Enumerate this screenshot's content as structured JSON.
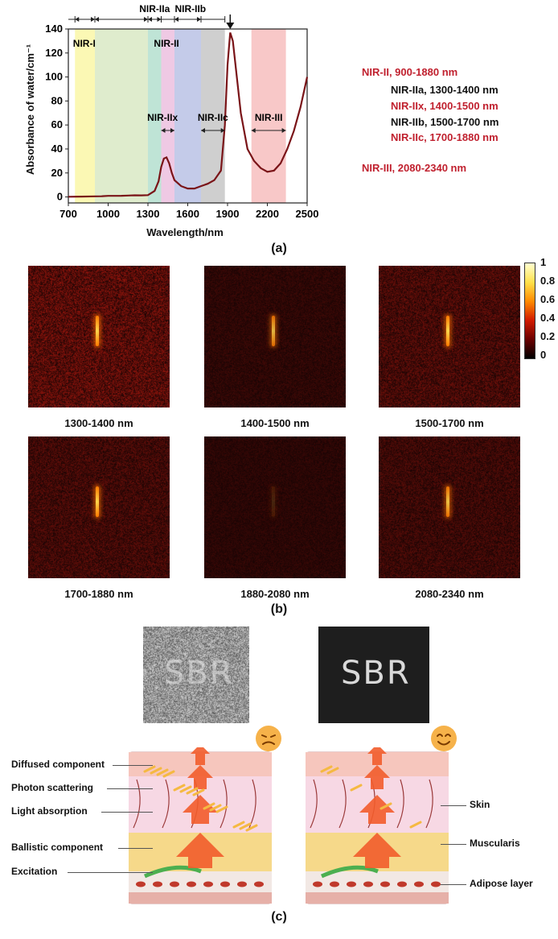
{
  "panel_a": {
    "label": "(a)",
    "chart_data": {
      "type": "line",
      "xlabel": "Wavelength/nm",
      "ylabel": "Absorbance of water/cm⁻¹",
      "xlim": [
        700,
        2500
      ],
      "ylim": [
        -5,
        140
      ],
      "x_ticks": [
        700,
        1000,
        1300,
        1600,
        1900,
        2200,
        2500
      ],
      "y_ticks": [
        0,
        20,
        40,
        60,
        80,
        100,
        120,
        140
      ],
      "series": [
        {
          "x": [
            700,
            800,
            900,
            950,
            1000,
            1100,
            1150,
            1200,
            1250,
            1300,
            1350,
            1380,
            1400,
            1420,
            1440,
            1460,
            1480,
            1500,
            1550,
            1600,
            1650,
            1700,
            1750,
            1800,
            1850,
            1880,
            1900,
            1920,
            1940,
            1960,
            2000,
            2050,
            2100,
            2150,
            2200,
            2250,
            2300,
            2350,
            2400,
            2450,
            2500
          ],
          "y": [
            0.2,
            0.3,
            0.5,
            0.6,
            0.9,
            1.0,
            1.2,
            1.4,
            1.3,
            1.5,
            5,
            13,
            25,
            32,
            33,
            28,
            20,
            14,
            9,
            7,
            7,
            9,
            11,
            14,
            22,
            60,
            110,
            137,
            130,
            110,
            70,
            40,
            30,
            24,
            21,
            22,
            28,
            40,
            55,
            75,
            100
          ]
        }
      ],
      "bands": [
        {
          "name": "NIR-I",
          "from": 750,
          "to": 900,
          "color": "#fbf8b4"
        },
        {
          "name": "NIR-II",
          "from": 900,
          "to": 1300,
          "color": "#dfeccd"
        },
        {
          "name": "NIR-IIa",
          "from": 1300,
          "to": 1400,
          "color": "#bfe4d6"
        },
        {
          "name": "NIR-IIx",
          "from": 1400,
          "to": 1500,
          "color": "#efc9e4"
        },
        {
          "name": "NIR-IIb",
          "from": 1500,
          "to": 1700,
          "color": "#c4cbe9"
        },
        {
          "name": "NIR-IIc",
          "from": 1700,
          "to": 1880,
          "color": "#cfcfcf"
        },
        {
          "name": "NIR-III",
          "from": 2080,
          "to": 2340,
          "color": "#f8c8c8"
        }
      ],
      "annotations": [
        "NIR-I",
        "NIR-IIa",
        "NIR-IIb",
        "NIR-II",
        "NIR-IIx",
        "NIR-IIc",
        "NIR-III"
      ]
    },
    "legend": [
      {
        "text": "NIR-II, 900-1880 nm",
        "color": "#c0202e"
      },
      {
        "text": "NIR-IIa, 1300-1400 nm",
        "color": "#111111"
      },
      {
        "text": "NIR-IIx, 1400-1500 nm",
        "color": "#c0202e"
      },
      {
        "text": "NIR-IIb, 1500-1700 nm",
        "color": "#111111"
      },
      {
        "text": "NIR-IIc, 1700-1880 nm",
        "color": "#c0202e"
      },
      {
        "text": "NIR-III, 2080-2340 nm",
        "color": "#c0202e"
      }
    ]
  },
  "panel_b": {
    "label": "(b)",
    "images": [
      {
        "caption": "1300-1400 nm",
        "noise": 0.55,
        "rod": 1.0
      },
      {
        "caption": "1400-1500 nm",
        "noise": 0.18,
        "rod": 0.85
      },
      {
        "caption": "1500-1700 nm",
        "noise": 0.4,
        "rod": 1.0
      },
      {
        "caption": "1700-1880 nm",
        "noise": 0.35,
        "rod": 1.0
      },
      {
        "caption": "1880-2080 nm",
        "noise": 0.15,
        "rod": 0.15
      },
      {
        "caption": "2080-2340 nm",
        "noise": 0.3,
        "rod": 0.9
      }
    ],
    "colorbar_ticks": [
      "1",
      "0.8",
      "0.6",
      "0.4",
      "0.2",
      "0"
    ]
  },
  "panel_c": {
    "label": "(c)",
    "sbr_text": "SBR",
    "left_labels": [
      "Diffused component",
      "Photon scattering",
      "Light absorption",
      "Ballistic component",
      "Excitation"
    ],
    "right_labels": [
      "Skin",
      "Muscularis",
      "Adipose layer"
    ]
  }
}
